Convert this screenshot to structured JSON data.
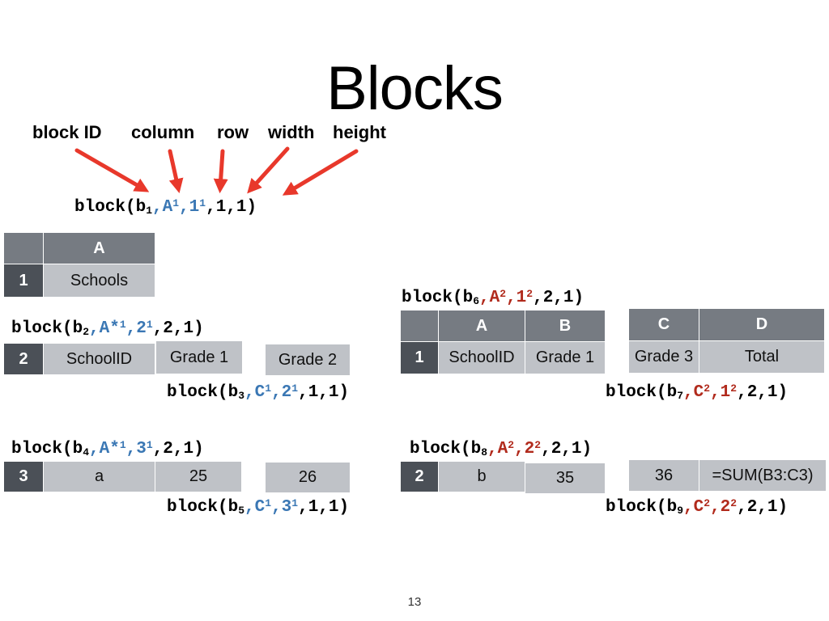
{
  "slide": {
    "title": "Blocks",
    "page_number": "13",
    "labels": [
      "block ID",
      "column",
      "row",
      "width",
      "height"
    ],
    "arrow_color": "#e8382b"
  },
  "colors": {
    "blue": "#3a77b4",
    "red": "#b12a1c",
    "header": "#767b82",
    "row_number": "#4b5057",
    "cell": "#bfc2c7"
  },
  "blocks": {
    "b1": {
      "pre": "block(b",
      "sub": "1",
      "mid1": ",A",
      "sup1": "1",
      "mid2": ",1",
      "sup2": "1",
      "tail": ",1,1)"
    },
    "b2": {
      "pre": "block(b",
      "sub": "2",
      "mid1": ",A*",
      "sup1": "1",
      "mid2": ",2",
      "sup2": "1",
      "tail": ",2,1)"
    },
    "b3": {
      "pre": "block(b",
      "sub": "3",
      "mid1": ",C",
      "sup1": "1",
      "mid2": ",2",
      "sup2": "1",
      "tail": ",1,1)"
    },
    "b4": {
      "pre": "block(b",
      "sub": "4",
      "mid1": ",A*",
      "sup1": "1",
      "mid2": ",3",
      "sup2": "1",
      "tail": ",2,1)"
    },
    "b5": {
      "pre": "block(b",
      "sub": "5",
      "mid1": ",C",
      "sup1": "1",
      "mid2": ",3",
      "sup2": "1",
      "tail": ",1,1)"
    },
    "b6": {
      "pre": "block(b",
      "sub": "6",
      "mid1": ",A",
      "sup1": "2",
      "mid2": ",1",
      "sup2": "2",
      "tail": ",2,1)"
    },
    "b7": {
      "pre": "block(b",
      "sub": "7",
      "mid1": ",C",
      "sup1": "2",
      "mid2": ",1",
      "sup2": "2",
      "tail": ",2,1)"
    },
    "b8": {
      "pre": "block(b",
      "sub": "8",
      "mid1": ",A",
      "sup1": "2",
      "mid2": ",2",
      "sup2": "2",
      "tail": ",2,1)"
    },
    "b9": {
      "pre": "block(b",
      "sub": "9",
      "mid1": ",C",
      "sup1": "2",
      "mid2": ",2",
      "sup2": "2",
      "tail": ",2,1)"
    }
  },
  "sheet1": {
    "header_a": "A",
    "row1": {
      "num": "1",
      "a": "Schools"
    },
    "row2": {
      "num": "2",
      "a": "SchoolID",
      "b": "Grade 1",
      "c": "Grade 2"
    },
    "row3": {
      "num": "3",
      "a": "a",
      "b": "25",
      "c": "26"
    }
  },
  "sheet2": {
    "header_a": "A",
    "header_b": "B",
    "header_c": "C",
    "header_d": "D",
    "row1": {
      "num": "1",
      "a": "SchoolID",
      "b": "Grade 1",
      "c": "Grade 3",
      "d": "Total"
    },
    "row2": {
      "num": "2",
      "a": "b",
      "b": "35",
      "c": "36",
      "d": "=SUM(B3:C3)"
    }
  }
}
